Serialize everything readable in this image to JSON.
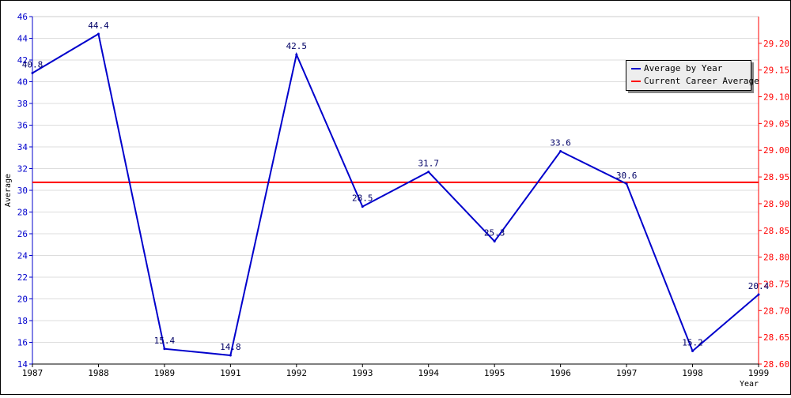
{
  "chart_data": {
    "type": "line",
    "xlabel": "Year",
    "ylabel": "Average",
    "x": [
      "1987",
      "1988",
      "1989",
      "1991",
      "1992",
      "1993",
      "1994",
      "1995",
      "1996",
      "1997",
      "1998",
      "1999"
    ],
    "series": [
      {
        "name": "Average by Year",
        "values": [
          40.8,
          44.4,
          15.4,
          14.8,
          42.5,
          28.5,
          31.7,
          25.3,
          33.6,
          30.6,
          15.2,
          20.4
        ],
        "data_labels": [
          "40.8",
          "44.4",
          "15.4",
          "14.8",
          "42.5",
          "28.5",
          "31.7",
          "25.3",
          "33.6",
          "30.6",
          "15.2",
          "20.4"
        ],
        "color": "#0000cc",
        "axis": "left"
      },
      {
        "name": "Current Career Average",
        "value": 28.94,
        "color": "#ff0000",
        "axis": "right"
      }
    ],
    "left_axis": {
      "ylim": [
        14,
        46
      ],
      "ticks": [
        "14",
        "16",
        "18",
        "20",
        "22",
        "24",
        "26",
        "28",
        "30",
        "32",
        "34",
        "36",
        "38",
        "40",
        "42",
        "44",
        "46"
      ],
      "color": "#0000cc"
    },
    "right_axis": {
      "ylim": [
        28.6,
        29.25
      ],
      "ticks": [
        "28.60",
        "28.65",
        "28.70",
        "28.75",
        "28.80",
        "28.85",
        "28.90",
        "28.95",
        "29.00",
        "29.05",
        "29.10",
        "29.15",
        "29.20"
      ],
      "color": "#ff0000"
    },
    "grid": true,
    "legend_position": "top-right"
  }
}
